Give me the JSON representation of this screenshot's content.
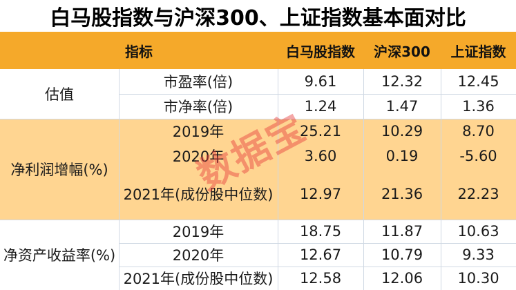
{
  "title": "白马股指数与沪深300、上证指数基本面对比",
  "header": {
    "indicator": "指标",
    "col1": "白马股指数",
    "col2": "沪深300",
    "col3": "上证指数"
  },
  "sections": [
    {
      "name": "估值",
      "rows": [
        {
          "label": "市盈率(倍)",
          "v1": "9.61",
          "v2": "12.32",
          "v3": "12.45"
        },
        {
          "label": "市净率(倍)",
          "v1": "1.24",
          "v2": "1.47",
          "v3": "1.36"
        }
      ]
    },
    {
      "name": "净利润增幅(%)",
      "rows": [
        {
          "label": "2019年",
          "v1": "25.21",
          "v2": "10.29",
          "v3": "8.70"
        },
        {
          "label": "2020年",
          "v1": "3.60",
          "v2": "0.19",
          "v3": "-5.60"
        },
        {
          "label": "2021年(成份股中位数)",
          "v1": "12.97",
          "v2": "21.36",
          "v3": "22.23"
        }
      ]
    },
    {
      "name": "净资产收益率(%)",
      "rows": [
        {
          "label": "2019年",
          "v1": "18.75",
          "v2": "11.87",
          "v3": "10.63"
        },
        {
          "label": "2020年",
          "v1": "12.67",
          "v2": "10.79",
          "v3": "9.33"
        },
        {
          "label": "2021年(成份股中位数)",
          "v1": "12.58",
          "v2": "12.06",
          "v3": "10.30"
        }
      ]
    }
  ],
  "watermark": "数据宝"
}
